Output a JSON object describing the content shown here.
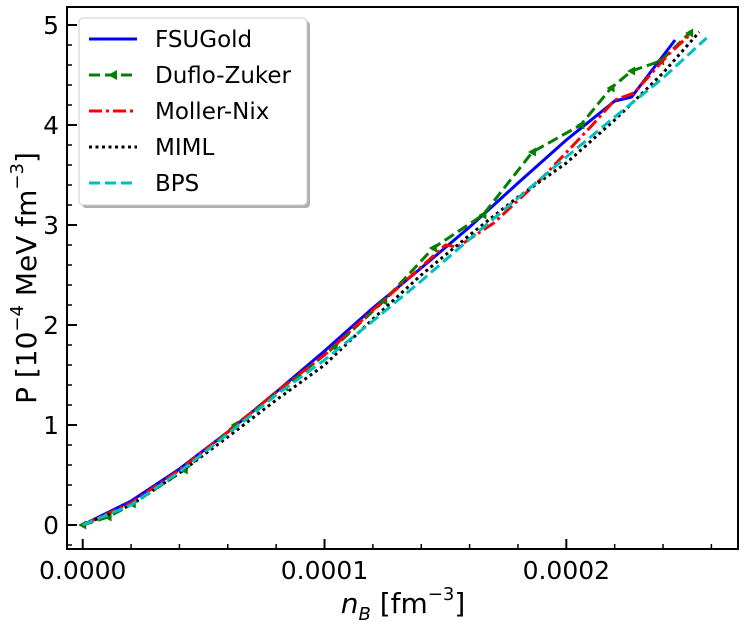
{
  "chart_data": {
    "type": "line",
    "title": "",
    "xlabel": {
      "var": "n",
      "sub": "B",
      "unit_pre": " [fm",
      "unit_exp": "−3",
      "unit_post": "]"
    },
    "ylabel": {
      "pre": "P [10",
      "exp": "−4",
      "post": " MeV fm",
      "exp2": "−3",
      "tail": "]"
    },
    "xlim": [
      -6.5e-06,
      0.000271
    ],
    "ylim": [
      -0.24,
      5.18
    ],
    "x_ticks": [
      {
        "value": 0.0,
        "label": "0.0000"
      },
      {
        "value": 0.0001,
        "label": "0.0001"
      },
      {
        "value": 0.0002,
        "label": "0.0002"
      }
    ],
    "y_ticks": [
      {
        "value": 0,
        "label": "0"
      },
      {
        "value": 1,
        "label": "1"
      },
      {
        "value": 2,
        "label": "2"
      },
      {
        "value": 3,
        "label": "3"
      },
      {
        "value": 4,
        "label": "4"
      },
      {
        "value": 5,
        "label": "5"
      }
    ],
    "grid": false,
    "legend_position": "top-left",
    "series": [
      {
        "name": "FSUGold",
        "color": "#0000ff",
        "style": "solid",
        "marker": "none",
        "x": [
          0.0,
          2e-05,
          4e-05,
          6e-05,
          8e-05,
          0.0001,
          0.00012,
          0.00014,
          0.00016,
          0.00018,
          0.0002,
          0.00022,
          0.000227,
          0.000245
        ],
        "y": [
          0.0,
          0.24,
          0.56,
          0.93,
          1.33,
          1.74,
          2.17,
          2.57,
          2.98,
          3.42,
          3.85,
          4.24,
          4.28,
          4.85
        ]
      },
      {
        "name": "Duflo-Zuker",
        "color": "#008000",
        "style": "dashed",
        "marker": "triangle-left",
        "x": [
          0.0,
          1.05e-05,
          2.05e-05,
          4.2e-05,
          6.3e-05,
          8.35e-05,
          0.000104,
          0.0001245,
          0.000145,
          0.0001655,
          0.000186,
          0.000206,
          0.0002185,
          0.000227,
          0.000239,
          0.000251
        ],
        "y": [
          0.0,
          0.08,
          0.21,
          0.55,
          1.0,
          1.38,
          1.78,
          2.24,
          2.77,
          3.1,
          3.73,
          4.0,
          4.37,
          4.54,
          4.64,
          4.92
        ]
      },
      {
        "name": "Moller-Nix",
        "color": "#ff0000",
        "style": "dashdot",
        "marker": "none",
        "x": [
          0.0,
          2e-05,
          4e-05,
          6e-05,
          8e-05,
          0.0001,
          0.00012,
          0.00014,
          0.00015,
          0.000155,
          0.00017,
          0.00019,
          0.00021,
          0.00022,
          0.000228,
          0.000242,
          0.000251
        ],
        "y": [
          0.0,
          0.22,
          0.55,
          0.93,
          1.33,
          1.7,
          2.15,
          2.58,
          2.8,
          2.78,
          3.02,
          3.47,
          3.98,
          4.25,
          4.32,
          4.7,
          4.9
        ]
      },
      {
        "name": "MIML",
        "color": "#000000",
        "style": "dotted",
        "marker": "none",
        "x": [
          0.0,
          2e-05,
          4e-05,
          6e-05,
          8e-05,
          0.0001,
          0.00012,
          0.00014,
          0.00016,
          0.00018,
          0.0002,
          0.00022,
          0.00024,
          0.000255
        ],
        "y": [
          0.0,
          0.2,
          0.52,
          0.88,
          1.25,
          1.6,
          2.06,
          2.5,
          2.9,
          3.28,
          3.62,
          4.05,
          4.52,
          4.93
        ]
      },
      {
        "name": "BPS",
        "color": "#00bfbf",
        "style": "dashed",
        "marker": "none",
        "x": [
          0.0,
          2e-05,
          4e-05,
          6e-05,
          8e-05,
          0.0001,
          0.00012,
          0.00014,
          0.00016,
          0.00018,
          0.0002,
          0.00022,
          0.00024,
          0.000258
        ],
        "y": [
          0.0,
          0.2,
          0.53,
          0.91,
          1.3,
          1.65,
          2.04,
          2.44,
          2.86,
          3.27,
          3.68,
          4.08,
          4.47,
          4.87
        ]
      }
    ]
  }
}
